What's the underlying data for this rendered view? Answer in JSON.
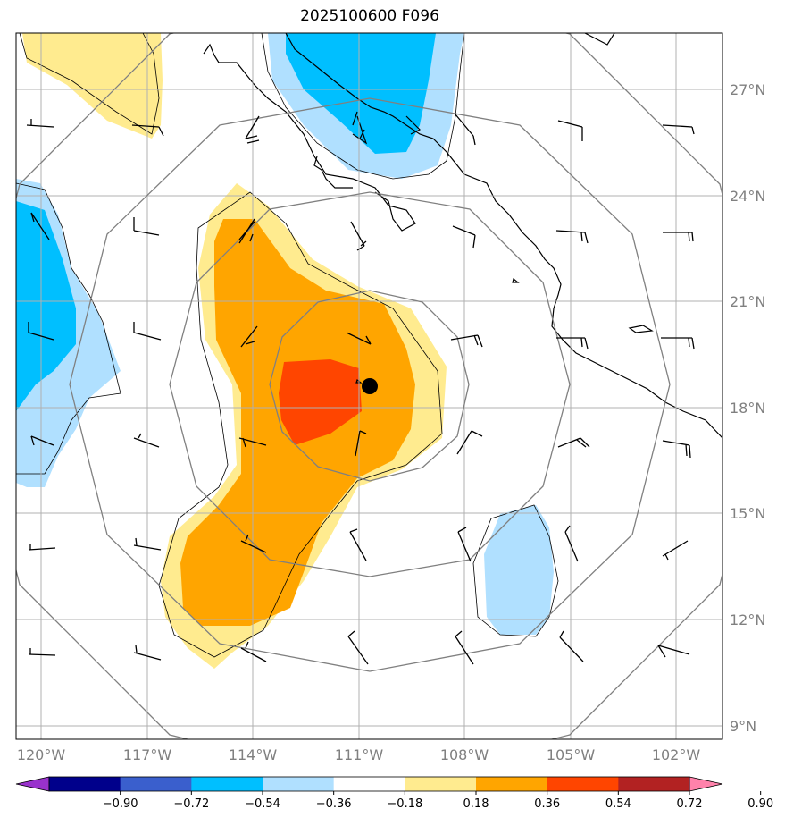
{
  "title": "2025100600 F096",
  "map": {
    "lat_labels": [
      "27°N",
      "24°N",
      "21°N",
      "18°N",
      "15°N",
      "12°N",
      "9°N"
    ],
    "lon_labels": [
      "120°W",
      "117°W",
      "114°W",
      "111°W",
      "108°W",
      "105°W",
      "102°W"
    ],
    "storm_center_marker": "black-dot",
    "range_rings": 4
  },
  "colorbar": {
    "labels": [
      "−0.90",
      "−0.72",
      "−0.54",
      "−0.36",
      "−0.18",
      "0.18",
      "0.36",
      "0.54",
      "0.72",
      "0.90"
    ],
    "colors": [
      "#9932cc",
      "#00008b",
      "#3a5fcd",
      "#00bfff",
      "#b0e0ff",
      "#ffffff",
      "#ffeb8f",
      "#ffa500",
      "#ff4500",
      "#b22222",
      "#ff82ab"
    ]
  }
}
